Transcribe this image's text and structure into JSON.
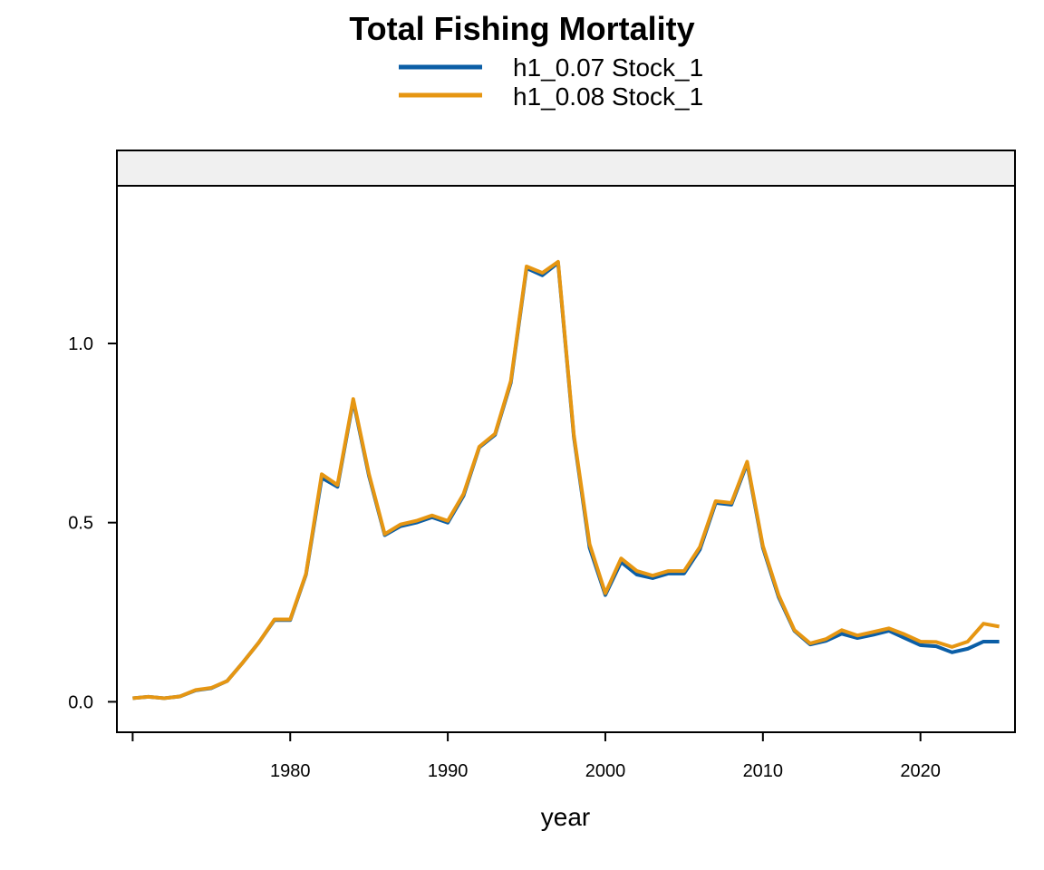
{
  "chart_data": {
    "type": "line",
    "title": "Total Fishing Mortality",
    "xlabel": "year",
    "ylabel": "",
    "xlim": [
      1969,
      2026
    ],
    "ylim": [
      -0.085,
      1.44
    ],
    "x_ticks": [
      1980,
      1990,
      2000,
      2010,
      2020
    ],
    "x_tick_labels": [
      "1980",
      "1990",
      "2000",
      "2010",
      "2020"
    ],
    "y_ticks": [
      0.0,
      0.5,
      1.0
    ],
    "y_tick_labels": [
      "0.0",
      "0.5",
      "1.0"
    ],
    "grid": false,
    "legend_position": "top",
    "strip_panel": true,
    "x": [
      1970,
      1971,
      1972,
      1973,
      1974,
      1975,
      1976,
      1977,
      1978,
      1979,
      1980,
      1981,
      1982,
      1983,
      1984,
      1985,
      1986,
      1987,
      1988,
      1989,
      1990,
      1991,
      1992,
      1993,
      1994,
      1995,
      1996,
      1997,
      1998,
      1999,
      2000,
      2001,
      2002,
      2003,
      2004,
      2005,
      2006,
      2007,
      2008,
      2009,
      2010,
      2011,
      2012,
      2013,
      2014,
      2015,
      2016,
      2017,
      2018,
      2019,
      2020,
      2021,
      2022,
      2023,
      2024,
      2025
    ],
    "series": [
      {
        "name": "h1_0.07 Stock_1",
        "color": "#0B5EA6",
        "values": [
          0.01,
          0.014,
          0.01,
          0.015,
          0.032,
          0.038,
          0.058,
          0.11,
          0.165,
          0.228,
          0.228,
          0.355,
          0.625,
          0.6,
          0.84,
          0.63,
          0.465,
          0.49,
          0.5,
          0.515,
          0.5,
          0.575,
          0.71,
          0.745,
          0.89,
          1.21,
          1.19,
          1.225,
          0.74,
          0.43,
          0.298,
          0.39,
          0.355,
          0.345,
          0.358,
          0.358,
          0.425,
          0.555,
          0.55,
          0.665,
          0.43,
          0.292,
          0.198,
          0.16,
          0.17,
          0.19,
          0.178,
          0.187,
          0.198,
          0.178,
          0.158,
          0.155,
          0.138,
          0.148,
          0.168,
          0.168
        ]
      },
      {
        "name": "h1_0.08 Stock_1",
        "color": "#E69612",
        "values": [
          0.01,
          0.014,
          0.01,
          0.015,
          0.033,
          0.039,
          0.058,
          0.11,
          0.165,
          0.23,
          0.23,
          0.357,
          0.635,
          0.605,
          0.845,
          0.635,
          0.468,
          0.495,
          0.505,
          0.52,
          0.505,
          0.58,
          0.712,
          0.748,
          0.895,
          1.215,
          1.197,
          1.228,
          0.745,
          0.44,
          0.303,
          0.4,
          0.365,
          0.352,
          0.365,
          0.365,
          0.432,
          0.56,
          0.555,
          0.67,
          0.435,
          0.297,
          0.2,
          0.163,
          0.175,
          0.2,
          0.185,
          0.195,
          0.205,
          0.188,
          0.168,
          0.167,
          0.153,
          0.168,
          0.218,
          0.21
        ]
      }
    ]
  }
}
